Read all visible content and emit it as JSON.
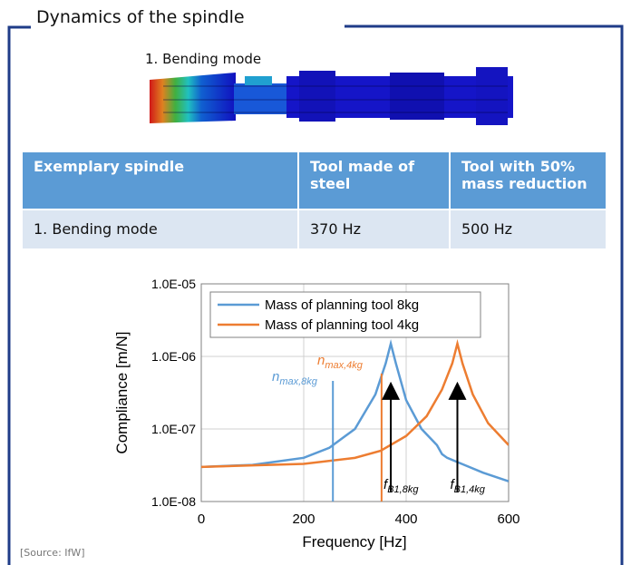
{
  "header": {
    "title": "Dynamics of the spindle"
  },
  "image_label": "1. Bending mode",
  "table": {
    "columns": [
      "Exemplary spindle",
      "Tool made of steel",
      "Tool with 50% mass reduction"
    ],
    "rows": [
      [
        "1. Bending mode",
        "370 Hz",
        "500 Hz"
      ]
    ]
  },
  "chart_data": {
    "type": "line",
    "xlabel": "Frequency [Hz]",
    "ylabel": "Compliance [m/N]",
    "xlim": [
      0,
      600
    ],
    "xticks": [
      0,
      200,
      400,
      600
    ],
    "ylim": [
      1e-08,
      1e-05
    ],
    "log_y": true,
    "grid": true,
    "yticks": [
      {
        "value": 1e-08,
        "label": "1.0E-08"
      },
      {
        "value": 1e-07,
        "label": "1.0E-07"
      },
      {
        "value": 1e-06,
        "label": "1.0E-06"
      },
      {
        "value": 1e-05,
        "label": "1.0E-05"
      }
    ],
    "legend": "upper left",
    "series": [
      {
        "name": "Mass of planning tool 8kg",
        "color": "#5b9bd5",
        "x": [
          0,
          100,
          200,
          250,
          300,
          340,
          360,
          370,
          380,
          400,
          430,
          460,
          470,
          480,
          500,
          550,
          600
        ],
        "values": [
          3e-08,
          3.2e-08,
          4e-08,
          5.5e-08,
          1e-07,
          3e-07,
          8e-07,
          1.5e-06,
          8e-07,
          2.5e-07,
          1e-07,
          6e-08,
          4.5e-08,
          4e-08,
          3.5e-08,
          2.5e-08,
          1.9e-08
        ]
      },
      {
        "name": "Mass of planning tool 4kg",
        "color": "#ed7d31",
        "x": [
          0,
          200,
          300,
          350,
          400,
          440,
          470,
          490,
          500,
          510,
          530,
          560,
          600
        ],
        "values": [
          3e-08,
          3.3e-08,
          4e-08,
          5e-08,
          8e-08,
          1.5e-07,
          3.5e-07,
          8e-07,
          1.5e-06,
          8e-07,
          3e-07,
          1.2e-07,
          6e-08
        ]
      }
    ],
    "markers": [
      {
        "x": 257,
        "y": 4.6e-07,
        "color": "#5b9bd5",
        "label": "n",
        "sub": "max,8kg"
      },
      {
        "x": 352,
        "y": 5.8e-07,
        "color": "#ed7d31",
        "label": "n",
        "sub": "max,4kg"
      }
    ],
    "arrows": [
      {
        "x": 370,
        "y": 4e-07,
        "color": "#000000",
        "label": "f",
        "sub": "B1,8kg"
      },
      {
        "x": 500,
        "y": 4e-07,
        "color": "#000000",
        "label": "f",
        "sub": "B1,4kg"
      }
    ]
  },
  "source": "[Source: IfW]"
}
